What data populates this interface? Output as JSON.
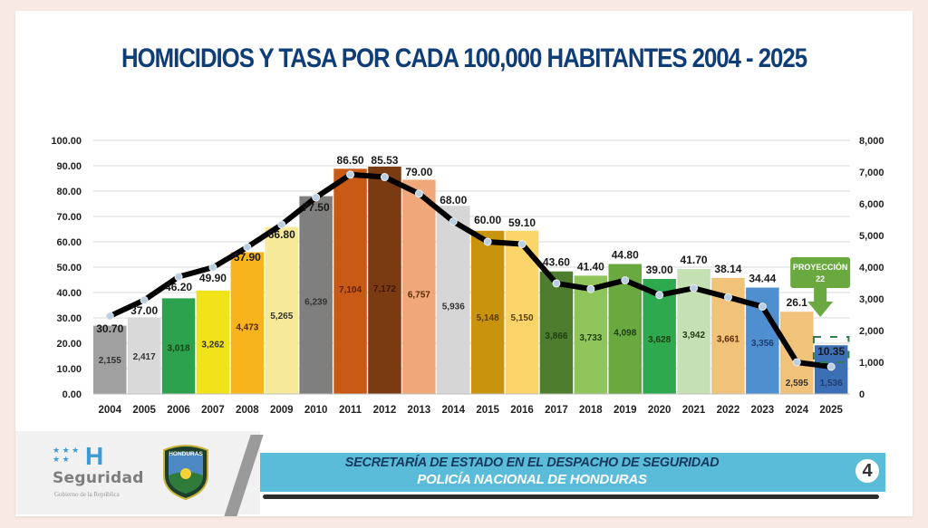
{
  "title": "HOMICIDIOS Y TASA POR CADA 100,000 HABITANTES 2004 - 2025",
  "chart_data": {
    "type": "bar",
    "title": "HOMICIDIOS Y TASA POR CADA 100,000 HABITANTES 2004 - 2025",
    "categories": [
      "2004",
      "2005",
      "2006",
      "2007",
      "2008",
      "2009",
      "2010",
      "2011",
      "2012",
      "2013",
      "2014",
      "2015",
      "2016",
      "2017",
      "2018",
      "2019",
      "2020",
      "2021",
      "2022",
      "2023",
      "2024",
      "2025"
    ],
    "series": [
      {
        "name": "Homicidios",
        "type": "bar",
        "axis": "right",
        "values": [
          2155,
          2417,
          3018,
          3262,
          4473,
          5265,
          6239,
          7104,
          7172,
          6757,
          5936,
          5148,
          5150,
          3866,
          3733,
          4098,
          3628,
          3942,
          3661,
          3356,
          2595,
          1536
        ],
        "labels": [
          "2,155",
          "2,417",
          "3,018",
          "3,262",
          "4,473",
          "5,265",
          "6,239",
          "7,104",
          "7,172",
          "6,757",
          "5,936",
          "5,148",
          "5,150",
          "3,866",
          "3,733",
          "4,098",
          "3,628",
          "3,942",
          "3,661",
          "3,356",
          "2,595",
          "1,536"
        ],
        "colors": [
          "#a0a0a0",
          "#d9d9d9",
          "#2ca24f",
          "#f1e31a",
          "#f8b41c",
          "#f6e99a",
          "#7f7f7f",
          "#c95a16",
          "#7a3a12",
          "#f0a77a",
          "#d6d6d6",
          "#c8930d",
          "#fbd56a",
          "#4d7d2d",
          "#8fc55a",
          "#6aa93f",
          "#2fa94e",
          "#c5e0b3",
          "#f1c27a",
          "#4f8fcf",
          "#f1c27a",
          "#3d6fb5"
        ],
        "label_colors": [
          "#333333",
          "#333333",
          "#1f3d12",
          "#333333",
          "#5a2a00",
          "#333333",
          "#333333",
          "#5a1d00",
          "#3b1404",
          "#5a2a00",
          "#333333",
          "#5a3d00",
          "#5a3d00",
          "#1f3d12",
          "#1f3d12",
          "#1f3d12",
          "#1f3d12",
          "#1f3d12",
          "#5a2a00",
          "#1f3c70",
          "#333333",
          "#1f3c70"
        ]
      },
      {
        "name": "Tasa por cada 100,000 habitantes",
        "type": "line",
        "axis": "left",
        "values": [
          30.7,
          37.0,
          46.2,
          49.9,
          57.9,
          66.8,
          77.5,
          86.5,
          85.53,
          79.0,
          68.0,
          60.0,
          59.1,
          43.6,
          41.4,
          44.8,
          39.0,
          41.7,
          38.14,
          34.44,
          26.1,
          10.35
        ],
        "labels": [
          "30.70",
          "37.00",
          "46.20",
          "49.90",
          "57.90",
          "66.80",
          "77.50",
          "86.50",
          "85.53",
          "79.00",
          "68.00",
          "60.00",
          "59.10",
          "43.60",
          "41.40",
          "44.80",
          "39.00",
          "41.70",
          "38.14",
          "34.44",
          "26.1",
          "10.35"
        ],
        "color": "#000000"
      }
    ],
    "y_left": {
      "ylim": [
        0,
        100
      ],
      "ticks": [
        "0.00",
        "10.00",
        "20.00",
        "30.00",
        "40.00",
        "50.00",
        "60.00",
        "70.00",
        "80.00",
        "90.00",
        "100.00"
      ]
    },
    "y_right": {
      "ylim": [
        0,
        8000
      ],
      "ticks": [
        "0",
        "1,000",
        "2,000",
        "3,000",
        "4,000",
        "5,000",
        "6,000",
        "7,000",
        "8,000"
      ]
    },
    "grid": true,
    "annotation": {
      "text_line1": "PROYECCIÓN",
      "text_line2": "22",
      "target": "2025",
      "color": "#6aa93f"
    }
  },
  "footer": {
    "logo_letter": "H",
    "logo_word": "Seguridad",
    "logo_sub": "Gobierno de la República",
    "badge_text": "HONDURAS",
    "line1": "SECRETARÍA DE ESTADO EN EL DESPACHO DE SEGURIDAD",
    "line2": "POLICÍA NACIONAL DE HONDURAS",
    "page_number": "4"
  }
}
